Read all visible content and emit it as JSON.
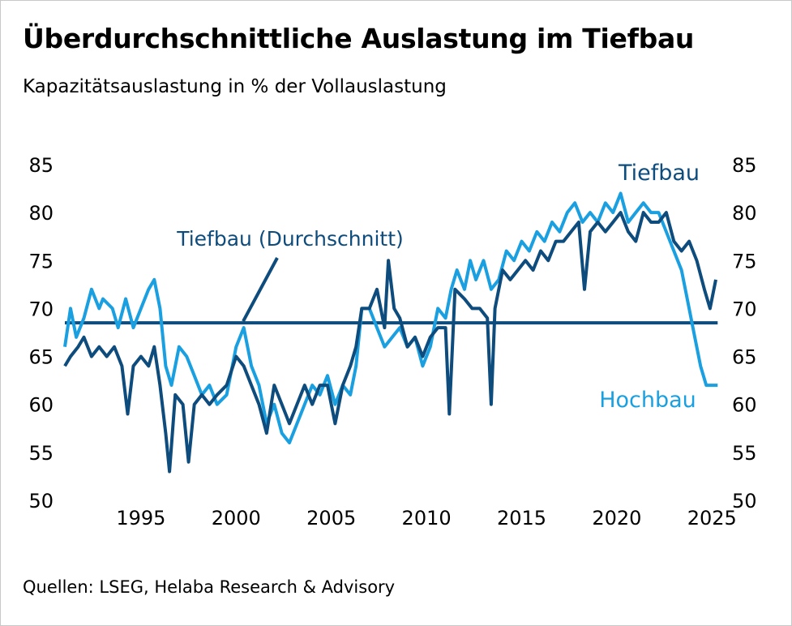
{
  "title": "Überdurchschnittliche Auslastung im Tiefbau",
  "subtitle": "Kapazitätsauslastung in % der Vollauslastung",
  "source": "Quellen: LSEG, Helaba Research & Advisory",
  "colors": {
    "tiefbau": "#0d4c7c",
    "hochbau": "#1aa0e0",
    "text": "#000000"
  },
  "chart_data": {
    "type": "line",
    "title": "Überdurchschnittliche Auslastung im Tiefbau",
    "xlim": [
      1991,
      2025.5
    ],
    "ylim": [
      50,
      85
    ],
    "x_ticks": [
      1995,
      2000,
      2005,
      2010,
      2015,
      2020,
      2025
    ],
    "y_ticks": [
      50,
      55,
      60,
      65,
      70,
      75,
      80,
      85
    ],
    "y_axes": "left and right",
    "reference_line": {
      "label": "Tiefbau (Durchschnitt)",
      "value": 68.5
    },
    "series": [
      {
        "name": "Hochbau",
        "points": [
          [
            1991,
            66
          ],
          [
            1991.3,
            70
          ],
          [
            1991.6,
            67
          ],
          [
            1992,
            69
          ],
          [
            1992.4,
            72
          ],
          [
            1992.8,
            70
          ],
          [
            1993,
            71
          ],
          [
            1993.5,
            70
          ],
          [
            1993.8,
            68
          ],
          [
            1994.2,
            71
          ],
          [
            1994.6,
            68
          ],
          [
            1995,
            70
          ],
          [
            1995.4,
            72
          ],
          [
            1995.7,
            73
          ],
          [
            1996,
            70
          ],
          [
            1996.3,
            64
          ],
          [
            1996.6,
            62
          ],
          [
            1997,
            66
          ],
          [
            1997.4,
            65
          ],
          [
            1997.8,
            63
          ],
          [
            1998.2,
            61
          ],
          [
            1998.6,
            62
          ],
          [
            1999,
            60
          ],
          [
            1999.5,
            61
          ],
          [
            2000,
            66
          ],
          [
            2000.4,
            68
          ],
          [
            2000.8,
            64
          ],
          [
            2001.2,
            62
          ],
          [
            2001.6,
            58
          ],
          [
            2002,
            60
          ],
          [
            2002.4,
            57
          ],
          [
            2002.8,
            56
          ],
          [
            2003.2,
            58
          ],
          [
            2003.6,
            60
          ],
          [
            2004,
            62
          ],
          [
            2004.4,
            61
          ],
          [
            2004.8,
            63
          ],
          [
            2005.2,
            60
          ],
          [
            2005.6,
            62
          ],
          [
            2006,
            61
          ],
          [
            2006.3,
            64
          ],
          [
            2006.6,
            70
          ],
          [
            2007,
            70
          ],
          [
            2007.4,
            68
          ],
          [
            2007.8,
            66
          ],
          [
            2008.2,
            67
          ],
          [
            2008.6,
            68
          ],
          [
            2009,
            66
          ],
          [
            2009.4,
            67
          ],
          [
            2009.8,
            64
          ],
          [
            2010.2,
            66
          ],
          [
            2010.6,
            70
          ],
          [
            2011,
            69
          ],
          [
            2011.3,
            72
          ],
          [
            2011.6,
            74
          ],
          [
            2012,
            72
          ],
          [
            2012.3,
            75
          ],
          [
            2012.6,
            73
          ],
          [
            2013,
            75
          ],
          [
            2013.4,
            72
          ],
          [
            2013.8,
            73
          ],
          [
            2014.2,
            76
          ],
          [
            2014.6,
            75
          ],
          [
            2015,
            77
          ],
          [
            2015.4,
            76
          ],
          [
            2015.8,
            78
          ],
          [
            2016.2,
            77
          ],
          [
            2016.6,
            79
          ],
          [
            2017,
            78
          ],
          [
            2017.4,
            80
          ],
          [
            2017.8,
            81
          ],
          [
            2018.2,
            79
          ],
          [
            2018.6,
            80
          ],
          [
            2019,
            79
          ],
          [
            2019.4,
            81
          ],
          [
            2019.8,
            80
          ],
          [
            2020.2,
            82
          ],
          [
            2020.6,
            79
          ],
          [
            2021,
            80
          ],
          [
            2021.4,
            81
          ],
          [
            2021.8,
            80
          ],
          [
            2022.2,
            80
          ],
          [
            2022.6,
            78
          ],
          [
            2023,
            76
          ],
          [
            2023.4,
            74
          ],
          [
            2023.8,
            70
          ],
          [
            2024.1,
            67
          ],
          [
            2024.4,
            64
          ],
          [
            2024.7,
            62
          ],
          [
            2025,
            62
          ],
          [
            2025.3,
            62
          ]
        ]
      },
      {
        "name": "Tiefbau",
        "points": [
          [
            1991,
            64
          ],
          [
            1991.3,
            65
          ],
          [
            1991.7,
            66
          ],
          [
            1992,
            67
          ],
          [
            1992.4,
            65
          ],
          [
            1992.8,
            66
          ],
          [
            1993.2,
            65
          ],
          [
            1993.6,
            66
          ],
          [
            1994,
            64
          ],
          [
            1994.3,
            59
          ],
          [
            1994.6,
            64
          ],
          [
            1995,
            65
          ],
          [
            1995.4,
            64
          ],
          [
            1995.7,
            66
          ],
          [
            1996,
            62
          ],
          [
            1996.3,
            57
          ],
          [
            1996.5,
            53
          ],
          [
            1996.8,
            61
          ],
          [
            1997.2,
            60
          ],
          [
            1997.5,
            54
          ],
          [
            1997.8,
            60
          ],
          [
            1998.2,
            61
          ],
          [
            1998.6,
            60
          ],
          [
            1999,
            61
          ],
          [
            1999.5,
            62
          ],
          [
            2000,
            65
          ],
          [
            2000.4,
            64
          ],
          [
            2000.8,
            62
          ],
          [
            2001.2,
            60
          ],
          [
            2001.6,
            57
          ],
          [
            2002,
            62
          ],
          [
            2002.4,
            60
          ],
          [
            2002.8,
            58
          ],
          [
            2003.2,
            60
          ],
          [
            2003.6,
            62
          ],
          [
            2004,
            60
          ],
          [
            2004.4,
            62
          ],
          [
            2004.8,
            62
          ],
          [
            2005.2,
            58
          ],
          [
            2005.6,
            62
          ],
          [
            2006,
            64
          ],
          [
            2006.3,
            66
          ],
          [
            2006.6,
            70
          ],
          [
            2007,
            70
          ],
          [
            2007.4,
            72
          ],
          [
            2007.8,
            68
          ],
          [
            2008,
            75
          ],
          [
            2008.3,
            70
          ],
          [
            2008.6,
            69
          ],
          [
            2009,
            66
          ],
          [
            2009.4,
            67
          ],
          [
            2009.8,
            65
          ],
          [
            2010.2,
            67
          ],
          [
            2010.6,
            68
          ],
          [
            2011,
            68
          ],
          [
            2011.2,
            59
          ],
          [
            2011.5,
            72
          ],
          [
            2012,
            71
          ],
          [
            2012.4,
            70
          ],
          [
            2012.8,
            70
          ],
          [
            2013.2,
            69
          ],
          [
            2013.4,
            60
          ],
          [
            2013.6,
            70
          ],
          [
            2014,
            74
          ],
          [
            2014.4,
            73
          ],
          [
            2014.8,
            74
          ],
          [
            2015.2,
            75
          ],
          [
            2015.6,
            74
          ],
          [
            2016,
            76
          ],
          [
            2016.4,
            75
          ],
          [
            2016.8,
            77
          ],
          [
            2017.2,
            77
          ],
          [
            2017.6,
            78
          ],
          [
            2018,
            79
          ],
          [
            2018.3,
            72
          ],
          [
            2018.6,
            78
          ],
          [
            2019,
            79
          ],
          [
            2019.4,
            78
          ],
          [
            2019.8,
            79
          ],
          [
            2020.2,
            80
          ],
          [
            2020.6,
            78
          ],
          [
            2021,
            77
          ],
          [
            2021.4,
            80
          ],
          [
            2021.8,
            79
          ],
          [
            2022.2,
            79
          ],
          [
            2022.6,
            80
          ],
          [
            2023,
            77
          ],
          [
            2023.4,
            76
          ],
          [
            2023.8,
            77
          ],
          [
            2024.2,
            75
          ],
          [
            2024.6,
            72
          ],
          [
            2024.9,
            70
          ],
          [
            2025.2,
            73
          ]
        ]
      }
    ],
    "series_labels": [
      "Tiefbau",
      "Hochbau"
    ]
  }
}
